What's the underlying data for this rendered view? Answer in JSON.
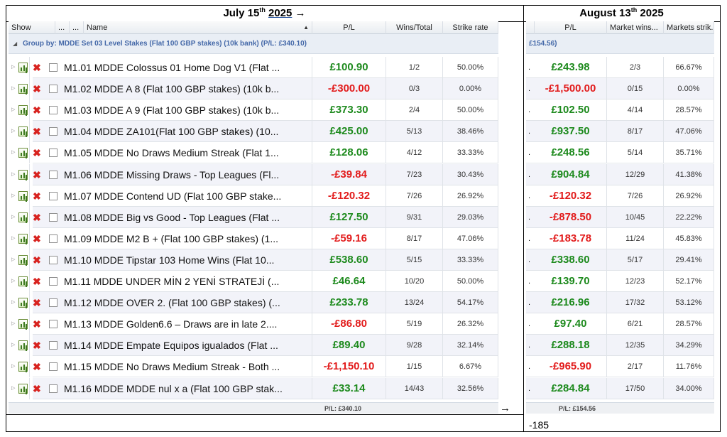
{
  "left_heading": {
    "prefix": "July 15",
    "sup": "th",
    "year": "2025",
    "arrow": "→"
  },
  "right_heading": {
    "prefix": "August 13",
    "sup": "th",
    "year": "2025"
  },
  "left_grid": {
    "columns": {
      "show": "Show",
      "dots1": "...",
      "dots2": "...",
      "name": "Name",
      "name_sort_icon": "sort-ascending-icon",
      "pl": "P/L",
      "wins_total": "Wins/Total",
      "strike_rate": "Strike rate"
    },
    "group_label": "Group by: MDDE Set 03 Level Stakes (Flat 100 GBP stakes) (10k bank) (P/L: £340.10)",
    "footer_pl": "P/L: £340.10",
    "rows": [
      {
        "name": "M1.01 MDDE Colossus 01 Home Dog V1 (Flat ...",
        "pl": "£100.90",
        "sign": "pos",
        "wins": "1/2",
        "rate": "50.00%"
      },
      {
        "name": "M1.02 MDDE A 8 (Flat 100 GBP stakes) (10k b...",
        "pl": "-£300.00",
        "sign": "neg",
        "wins": "0/3",
        "rate": "0.00%"
      },
      {
        "name": "M1.03 MDDE A 9 (Flat 100 GBP stakes) (10k b...",
        "pl": "£373.30",
        "sign": "pos",
        "wins": "2/4",
        "rate": "50.00%"
      },
      {
        "name": "M1.04 MDDE ZA101(Flat 100 GBP stakes) (10...",
        "pl": "£425.00",
        "sign": "pos",
        "wins": "5/13",
        "rate": "38.46%"
      },
      {
        "name": "M1.05 MDDE No Draws Medium Streak (Flat 1...",
        "pl": "£128.06",
        "sign": "pos",
        "wins": "4/12",
        "rate": "33.33%"
      },
      {
        "name": "M1.06 MDDE Missing Draws - Top Leagues (Fl...",
        "pl": "-£39.84",
        "sign": "neg",
        "wins": "7/23",
        "rate": "30.43%"
      },
      {
        "name": "M1.07 MDDE Contend UD (Flat 100 GBP stake...",
        "pl": "-£120.32",
        "sign": "neg",
        "wins": "7/26",
        "rate": "26.92%"
      },
      {
        "name": "M1.08 MDDE Big vs Good - Top Leagues (Flat ...",
        "pl": "£127.50",
        "sign": "pos",
        "wins": "9/31",
        "rate": "29.03%"
      },
      {
        "name": "M1.09 MDDE M2 B + (Flat 100 GBP stakes) (1...",
        "pl": "-£59.16",
        "sign": "neg",
        "wins": "8/17",
        "rate": "47.06%"
      },
      {
        "name": "M1.10 MDDE Tipstar 103 Home Wins (Flat 10...",
        "pl": "£538.60",
        "sign": "pos",
        "wins": "5/15",
        "rate": "33.33%"
      },
      {
        "name": "M1.11 MDDE UNDER MİN 2 YENİ STRATEJİ (...",
        "pl": "£46.64",
        "sign": "pos",
        "wins": "10/20",
        "rate": "50.00%"
      },
      {
        "name": "M1.12 MDDE OVER 2. (Flat 100 GBP stakes) (...",
        "pl": "£233.78",
        "sign": "pos",
        "wins": "13/24",
        "rate": "54.17%"
      },
      {
        "name": "M1.13 MDDE Golden6.6 – Draws are in late 2....",
        "pl": "-£86.80",
        "sign": "neg",
        "wins": "5/19",
        "rate": "26.32%"
      },
      {
        "name": "M1.14 MDDE Empate Equipos igualados (Flat ...",
        "pl": "£89.40",
        "sign": "pos",
        "wins": "9/28",
        "rate": "32.14%"
      },
      {
        "name": "M1.15 MDDE No Draws Medium Streak - Both ...",
        "pl": "-£1,150.10",
        "sign": "neg",
        "wins": "1/15",
        "rate": "6.67%"
      },
      {
        "name": "M1.16 MDDE MDDE nul x a (Flat 100 GBP stak...",
        "pl": "£33.14",
        "sign": "pos",
        "wins": "14/43",
        "rate": "32.56%"
      }
    ]
  },
  "right_grid": {
    "columns": {
      "pl": "P/L",
      "market_wins": "Market wins...",
      "markets_strike": "Markets strik..."
    },
    "group_label": "£154.56)",
    "footer_pl": "P/L: £154.56",
    "rows": [
      {
        "pl": "£243.98",
        "sign": "pos",
        "wins": "2/3",
        "rate": "66.67%"
      },
      {
        "pl": "-£1,500.00",
        "sign": "neg",
        "wins": "0/15",
        "rate": "0.00%"
      },
      {
        "pl": "£102.50",
        "sign": "pos",
        "wins": "4/14",
        "rate": "28.57%"
      },
      {
        "pl": "£937.50",
        "sign": "pos",
        "wins": "8/17",
        "rate": "47.06%"
      },
      {
        "pl": "£248.56",
        "sign": "pos",
        "wins": "5/14",
        "rate": "35.71%"
      },
      {
        "pl": "£904.84",
        "sign": "pos",
        "wins": "12/29",
        "rate": "41.38%"
      },
      {
        "pl": "-£120.32",
        "sign": "neg",
        "wins": "7/26",
        "rate": "26.92%"
      },
      {
        "pl": "-£878.50",
        "sign": "neg",
        "wins": "10/45",
        "rate": "22.22%"
      },
      {
        "pl": "-£183.78",
        "sign": "neg",
        "wins": "11/24",
        "rate": "45.83%"
      },
      {
        "pl": "£338.60",
        "sign": "pos",
        "wins": "5/17",
        "rate": "29.41%"
      },
      {
        "pl": "£139.70",
        "sign": "pos",
        "wins": "12/23",
        "rate": "52.17%"
      },
      {
        "pl": "£216.96",
        "sign": "pos",
        "wins": "17/32",
        "rate": "53.12%"
      },
      {
        "pl": "£97.40",
        "sign": "pos",
        "wins": "6/21",
        "rate": "28.57%"
      },
      {
        "pl": "£288.18",
        "sign": "pos",
        "wins": "12/35",
        "rate": "34.29%"
      },
      {
        "pl": "-£965.90",
        "sign": "neg",
        "wins": "2/17",
        "rate": "11.76%"
      },
      {
        "pl": "£284.84",
        "sign": "pos",
        "wins": "17/50",
        "rate": "34.00%"
      }
    ]
  },
  "between_arrow": "→",
  "note": "-185",
  "colors": {
    "positive": "#1d8a1d",
    "negative": "#e21b1b",
    "group_text": "#4468a8"
  }
}
